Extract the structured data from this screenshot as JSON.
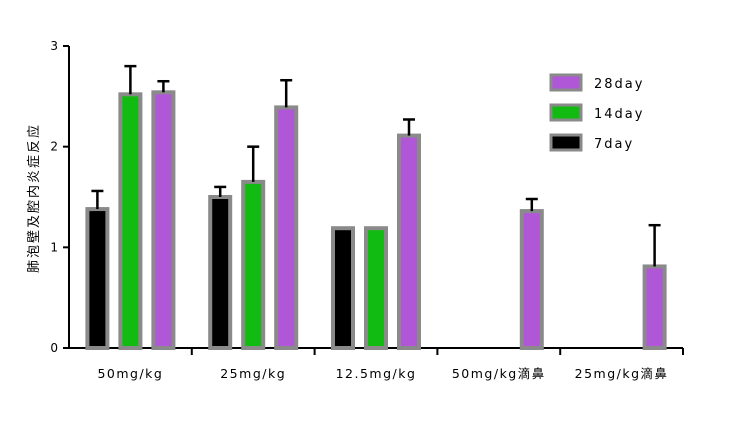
{
  "chart_data": {
    "type": "bar",
    "title": "",
    "xlabel": "",
    "ylabel": "肺泡壁及腔内炎症反应",
    "ylim": [
      0,
      3
    ],
    "yticks": [
      "0",
      "1",
      "2",
      "3"
    ],
    "categories": [
      "50mg/kg",
      "25mg/kg",
      "12.5mg/kg",
      "50mg/kg滴鼻",
      "25mg/kg滴鼻"
    ],
    "series": [
      {
        "name": "7day",
        "color": "#000000",
        "values": [
          1.38,
          1.5,
          1.19,
          null,
          null
        ],
        "errors": [
          0.18,
          0.1,
          null,
          null,
          null
        ]
      },
      {
        "name": "14day",
        "color": "#11bb11",
        "values": [
          2.52,
          1.65,
          1.19,
          null,
          null
        ],
        "errors": [
          0.28,
          0.35,
          null,
          null,
          null
        ]
      },
      {
        "name": "28day",
        "color": "#b057d8",
        "values": [
          2.54,
          2.39,
          2.11,
          1.36,
          0.81
        ],
        "errors": [
          0.11,
          0.27,
          0.16,
          0.12,
          0.41
        ]
      }
    ],
    "legend": {
      "position": "top-right",
      "order": [
        "28day",
        "14day",
        "7day"
      ]
    },
    "grid": false
  }
}
